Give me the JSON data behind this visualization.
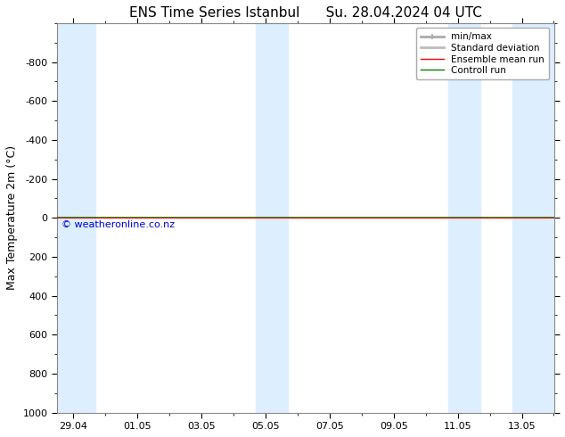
{
  "title": "ENS Time Series Istanbul      Su. 28.04.2024 04 UTC",
  "ylabel": "Max Temperature 2m (°C)",
  "watermark": "© weatheronline.co.nz",
  "ylim_top": -1000,
  "ylim_bottom": 1000,
  "yticks": [
    -800,
    -600,
    -400,
    -200,
    0,
    200,
    400,
    600,
    800,
    1000
  ],
  "background_color": "#ffffff",
  "plot_bg_color": "#ffffff",
  "shaded_band_color": "#ddeeff",
  "line_y": 0,
  "line_color_green": "#008000",
  "line_color_red": "#ff0000",
  "legend_entries": [
    {
      "label": "min/max",
      "color": "#aaaaaa",
      "lw": 2
    },
    {
      "label": "Standard deviation",
      "color": "#bbbbbb",
      "lw": 2
    },
    {
      "label": "Ensemble mean run",
      "color": "#ff0000",
      "lw": 1
    },
    {
      "label": "Controll run",
      "color": "#008000",
      "lw": 1
    }
  ],
  "title_fontsize": 11,
  "axis_label_fontsize": 9,
  "tick_fontsize": 8,
  "watermark_color": "#0000cc",
  "watermark_fontsize": 8,
  "spine_color": "#888888",
  "xtick_labels": [
    "29.04",
    "01.05",
    "03.05",
    "05.05",
    "07.05",
    "09.05",
    "11.05",
    "13.05"
  ],
  "xtick_positions": [
    0,
    2,
    4,
    6,
    8,
    10,
    12,
    14
  ],
  "xlim": [
    -0.5,
    15.0
  ],
  "shaded_bands": [
    [
      -0.5,
      0.7
    ],
    [
      5.7,
      6.7
    ],
    [
      11.7,
      12.7
    ],
    [
      13.7,
      15.0
    ]
  ],
  "minor_xticks": [
    0,
    1,
    2,
    3,
    4,
    5,
    6,
    7,
    8,
    9,
    10,
    11,
    12,
    13,
    14
  ]
}
